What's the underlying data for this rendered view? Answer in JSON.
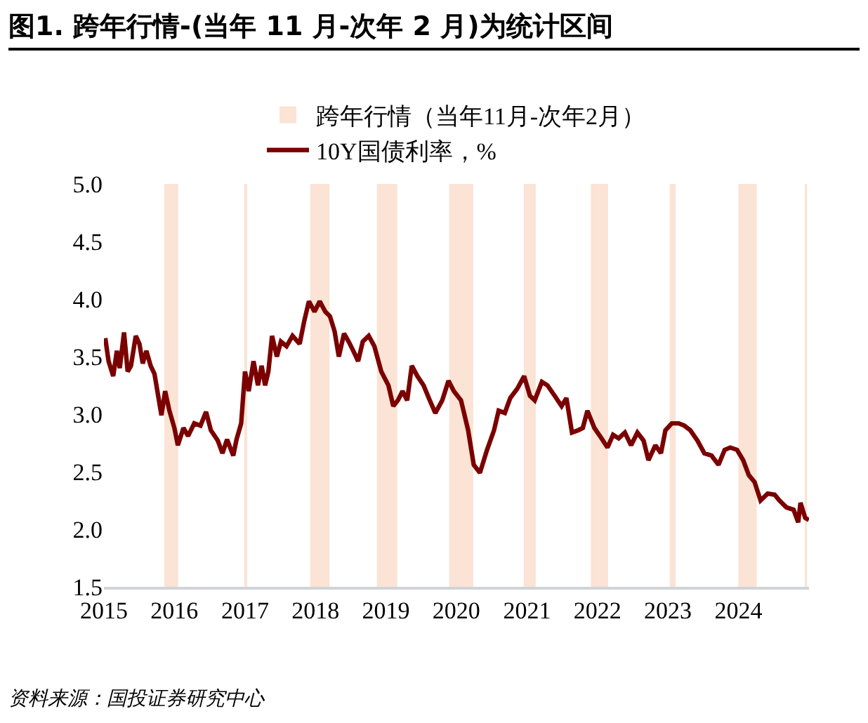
{
  "chart_data": {
    "type": "line",
    "title": "图1. 跨年行情-(当年 11 月-次年 2 月)为统计区间",
    "x": [
      "2015-01-08",
      "2015-01-25",
      "2015-02-18",
      "2015-03-09",
      "2015-03-24",
      "2015-04-15",
      "2015-05-04",
      "2015-05-21",
      "2015-06-15",
      "2015-07-04",
      "2015-07-21",
      "2015-08-09",
      "2015-08-31",
      "2015-09-20",
      "2015-10-26",
      "2015-11-14",
      "2015-12-06",
      "2016-01-01",
      "2016-01-19",
      "2016-02-17",
      "2016-03-12",
      "2016-04-13",
      "2016-05-15",
      "2016-06-13",
      "2016-07-08",
      "2016-08-13",
      "2016-09-06",
      "2016-09-30",
      "2016-11-01",
      "2016-11-18",
      "2016-12-12",
      "2017-01-01",
      "2017-01-20",
      "2017-02-14",
      "2017-03-09",
      "2017-03-28",
      "2017-04-15",
      "2017-05-02",
      "2017-05-21",
      "2017-06-15",
      "2017-07-06",
      "2017-08-04",
      "2017-09-04",
      "2017-10-11",
      "2017-11-04",
      "2017-11-28",
      "2017-12-27",
      "2018-01-23",
      "2018-02-21",
      "2018-03-17",
      "2018-04-10",
      "2018-05-02",
      "2018-05-29",
      "2018-06-22",
      "2018-07-16",
      "2018-08-10",
      "2018-09-03",
      "2018-10-04",
      "2018-11-02",
      "2018-12-08",
      "2019-01-14",
      "2019-02-08",
      "2019-03-04",
      "2019-03-28",
      "2019-04-21",
      "2019-05-15",
      "2019-06-13",
      "2019-07-15",
      "2019-08-16",
      "2019-09-14",
      "2019-10-20",
      "2019-11-21",
      "2019-12-19",
      "2020-01-25",
      "2020-03-02",
      "2020-03-31",
      "2020-05-02",
      "2020-06-08",
      "2020-07-14",
      "2020-08-07",
      "2020-09-08",
      "2020-10-06",
      "2020-11-11",
      "2020-12-17",
      "2021-01-16",
      "2021-02-10",
      "2021-03-19",
      "2021-04-17",
      "2021-05-24",
      "2021-06-29",
      "2021-07-24",
      "2021-08-22",
      "2021-09-23",
      "2021-10-17",
      "2021-11-10",
      "2021-12-16",
      "2022-01-22",
      "2022-02-22",
      "2022-03-23",
      "2022-04-21",
      "2022-05-23",
      "2022-06-24",
      "2022-07-27",
      "2022-08-28",
      "2022-09-22",
      "2022-10-28",
      "2022-11-26",
      "2022-12-19",
      "2023-01-21",
      "2023-02-26",
      "2023-03-27",
      "2023-04-27",
      "2023-06-03",
      "2023-07-09",
      "2023-08-15",
      "2023-09-20",
      "2023-10-22",
      "2023-11-20",
      "2023-12-25",
      "2024-01-26",
      "2024-02-24",
      "2024-03-25",
      "2024-04-25",
      "2024-06-01",
      "2024-07-07",
      "2024-08-01",
      "2024-09-06",
      "2024-10-13",
      "2024-11-06",
      "2024-11-18",
      "2024-12-12",
      "2024-12-31"
    ],
    "series": [
      {
        "name": "10Y国债利率，%",
        "color": "#7b0000",
        "values": [
          3.66,
          3.46,
          3.33,
          3.55,
          3.4,
          3.71,
          3.37,
          3.42,
          3.68,
          3.61,
          3.44,
          3.55,
          3.42,
          3.35,
          2.99,
          3.2,
          3.03,
          2.88,
          2.73,
          2.88,
          2.81,
          2.92,
          2.9,
          3.02,
          2.86,
          2.77,
          2.66,
          2.78,
          2.64,
          2.78,
          2.92,
          3.37,
          3.2,
          3.46,
          3.25,
          3.42,
          3.25,
          3.37,
          3.68,
          3.5,
          3.63,
          3.59,
          3.68,
          3.61,
          3.81,
          3.98,
          3.89,
          3.98,
          3.89,
          3.85,
          3.72,
          3.5,
          3.7,
          3.63,
          3.55,
          3.46,
          3.63,
          3.68,
          3.59,
          3.37,
          3.25,
          3.07,
          3.12,
          3.2,
          3.12,
          3.42,
          3.33,
          3.25,
          3.12,
          3.01,
          3.12,
          3.29,
          3.2,
          3.12,
          2.86,
          2.56,
          2.49,
          2.69,
          2.86,
          3.03,
          3.01,
          3.14,
          3.22,
          3.33,
          3.16,
          3.12,
          3.28,
          3.25,
          3.16,
          3.07,
          3.14,
          2.84,
          2.86,
          2.88,
          3.03,
          2.88,
          2.79,
          2.71,
          2.82,
          2.79,
          2.84,
          2.73,
          2.84,
          2.77,
          2.6,
          2.73,
          2.66,
          2.86,
          2.92,
          2.92,
          2.9,
          2.86,
          2.77,
          2.66,
          2.64,
          2.56,
          2.69,
          2.71,
          2.69,
          2.6,
          2.47,
          2.41,
          2.25,
          2.31,
          2.3,
          2.25,
          2.19,
          2.17,
          2.06,
          2.23,
          2.1,
          2.08
        ]
      }
    ],
    "xlim": [
      "2015-01-01",
      "2025-01-01"
    ],
    "xticks": [
      {
        "value": "2015-01-01",
        "label": "2015"
      },
      {
        "value": "2016-01-01",
        "label": "2016"
      },
      {
        "value": "2017-01-01",
        "label": "2017"
      },
      {
        "value": "2018-01-01",
        "label": "2018"
      },
      {
        "value": "2019-01-01",
        "label": "2019"
      },
      {
        "value": "2020-01-01",
        "label": "2020"
      },
      {
        "value": "2021-01-01",
        "label": "2021"
      },
      {
        "value": "2022-01-01",
        "label": "2022"
      },
      {
        "value": "2023-01-01",
        "label": "2023"
      },
      {
        "value": "2024-01-01",
        "label": "2024"
      }
    ],
    "ylim": [
      1.5,
      5.0
    ],
    "yticks": [
      {
        "value": 1.5,
        "label": "1.5"
      },
      {
        "value": 2.0,
        "label": "2.0"
      },
      {
        "value": 2.5,
        "label": "2.5"
      },
      {
        "value": 3.0,
        "label": "3.0"
      },
      {
        "value": 3.5,
        "label": "3.5"
      },
      {
        "value": 4.0,
        "label": "4.0"
      },
      {
        "value": 4.5,
        "label": "4.5"
      },
      {
        "value": 5.0,
        "label": "5.0"
      }
    ],
    "bands": [
      {
        "axis": "x",
        "from": "2015-11-10",
        "to": "2016-01-20",
        "label": "跨年行情（当年11月-次年2月）",
        "color": "#fbe3d5"
      },
      {
        "axis": "x",
        "from": "2016-12-28",
        "to": "2017-01-12",
        "color": "#fbe3d5"
      },
      {
        "axis": "x",
        "from": "2017-12-05",
        "to": "2018-03-15",
        "color": "#fbe3d5"
      },
      {
        "axis": "x",
        "from": "2018-11-15",
        "to": "2019-03-01",
        "color": "#fbe3d5"
      },
      {
        "axis": "x",
        "from": "2019-11-25",
        "to": "2020-03-28",
        "color": "#fbe3d5"
      },
      {
        "axis": "x",
        "from": "2020-12-15",
        "to": "2021-02-15",
        "color": "#fbe3d5"
      },
      {
        "axis": "x",
        "from": "2021-11-28",
        "to": "2022-02-25",
        "color": "#fbe3d5"
      },
      {
        "axis": "x",
        "from": "2023-01-10",
        "to": "2023-02-10",
        "color": "#fbe3d5"
      },
      {
        "axis": "x",
        "from": "2024-01-01",
        "to": "2024-04-05",
        "color": "#fbe3d5"
      },
      {
        "axis": "x",
        "from": "2024-12-10",
        "to": "2024-12-22",
        "color": "#fbe3d5"
      }
    ],
    "line_style": "solid",
    "grid": false,
    "legend": "top",
    "annotations": [
      "资料来源：国投证券研究中心"
    ]
  }
}
